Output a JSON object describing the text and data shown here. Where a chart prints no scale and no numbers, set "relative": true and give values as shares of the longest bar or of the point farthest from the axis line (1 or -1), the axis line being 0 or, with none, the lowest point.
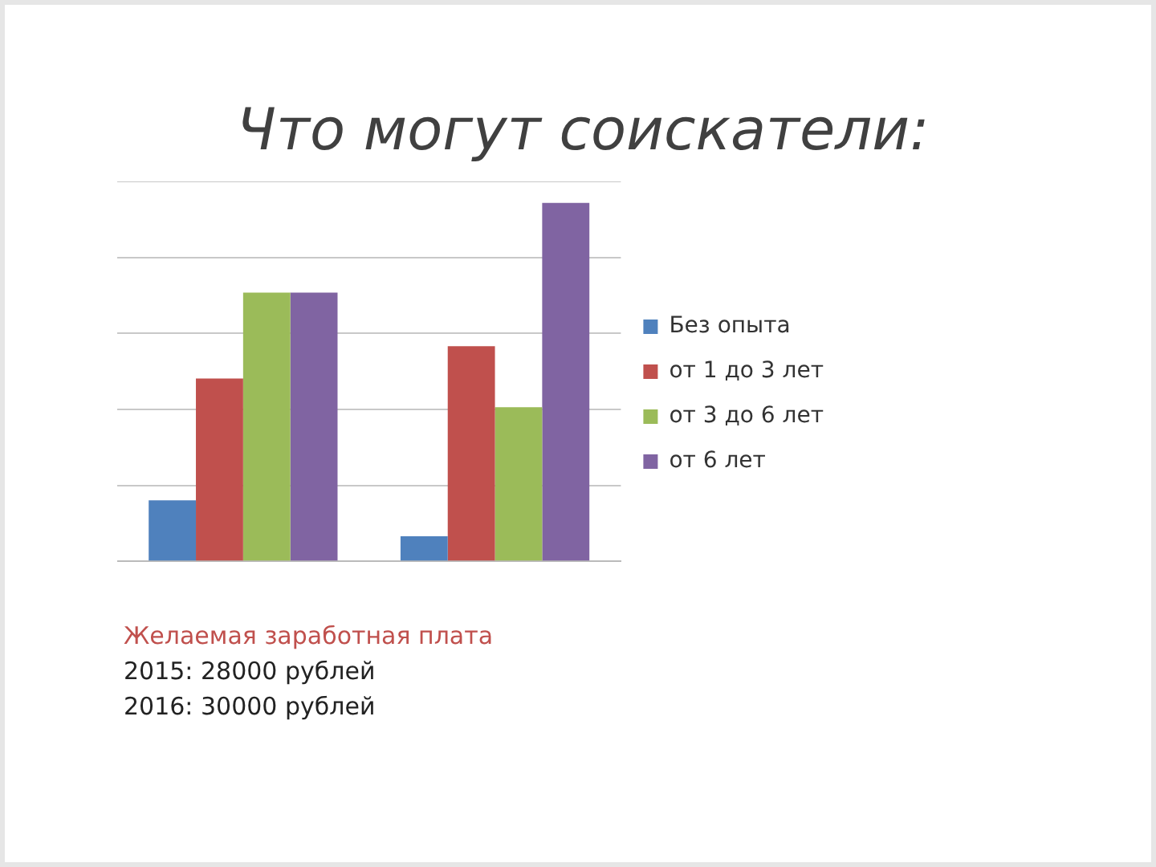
{
  "chart_data": {
    "type": "bar",
    "title": "Что могут соискатели:",
    "categories": [
      null,
      null
    ],
    "relative": true,
    "grid": "y",
    "legend": "right",
    "series": [
      {
        "name": "Без опыта",
        "color": "#4f81bd",
        "values": [
          0.17,
          0.07
        ]
      },
      {
        "name": "от 1 до 3 лет",
        "color": "#c0504d",
        "values": [
          0.51,
          0.6
        ]
      },
      {
        "name": "от 3 до 6 лет",
        "color": "#9bbb59",
        "values": [
          0.75,
          0.43
        ]
      },
      {
        "name": "от 6 лет",
        "color": "#8064a2",
        "values": [
          0.75,
          1
        ]
      }
    ],
    "annotations": [
      "Желаемая заработная плата",
      "2015: 28000 рублей",
      "2016: 30000 рублей"
    ]
  }
}
